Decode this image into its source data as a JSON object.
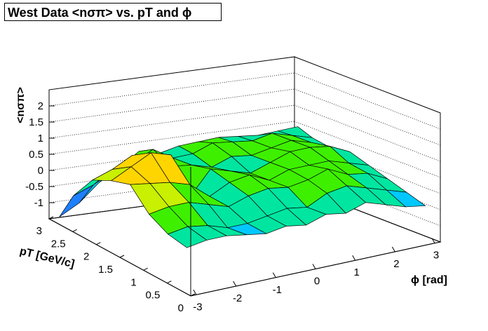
{
  "chart_data": {
    "type": "surface",
    "title": "West Data <nσπ> vs. pT and ϕ",
    "xlabel": "ϕ [rad]",
    "ylabel": "pT [GeV/c]",
    "zlabel": "<nσπ>",
    "xlim": [
      -3.14,
      3.14
    ],
    "ylim": [
      0,
      3
    ],
    "zlim": [
      -1.5,
      2.5
    ],
    "x_ticks": [
      "-3",
      "-2",
      "-1",
      "0",
      "1",
      "2",
      "3"
    ],
    "x_tick_values": [
      -3,
      -2,
      -1,
      0,
      1,
      2,
      3
    ],
    "y_ticks": [
      "0",
      "0.5",
      "1",
      "1.5",
      "2",
      "2.5",
      "3"
    ],
    "y_tick_values": [
      0,
      0.5,
      1,
      1.5,
      2,
      2.5,
      3
    ],
    "z_ticks": [
      "-1",
      "-0.5",
      "0",
      "0.5",
      "1",
      "1.5",
      "2"
    ],
    "z_tick_values": [
      -1,
      -0.5,
      0,
      0.5,
      1,
      1.5,
      2
    ],
    "grid": true,
    "palette": [
      "#6a00ff",
      "#3a2fe0",
      "#1e7fff",
      "#00c8ff",
      "#00e6a0",
      "#3ef000",
      "#c8f000",
      "#ffd500",
      "#ff7a00",
      "#ff2a00"
    ],
    "phi": [
      -3.0,
      -2.5,
      -2.0,
      -1.5,
      -1.0,
      -0.5,
      0.0,
      0.5,
      1.0,
      1.5,
      2.0,
      2.5,
      3.0
    ],
    "pt": [
      0.2,
      0.6,
      1.0,
      1.4,
      1.8,
      2.2,
      2.6,
      2.9
    ],
    "z": [
      [
        -0.2,
        -0.1,
        -0.1,
        -0.2,
        -0.3,
        -0.2,
        -0.3,
        -0.1,
        -0.2,
        0.0,
        -0.2,
        -0.4,
        -0.5
      ],
      [
        -0.1,
        0.0,
        -0.1,
        -0.3,
        -0.3,
        -0.2,
        -0.1,
        -0.2,
        0.1,
        0.2,
        0.0,
        -0.2,
        -0.4
      ],
      [
        0.2,
        0.3,
        0.3,
        0.1,
        -0.1,
        0.1,
        0.2,
        0.1,
        0.2,
        0.4,
        0.1,
        0.0,
        -0.3
      ],
      [
        0.8,
        0.7,
        0.6,
        0.4,
        -0.1,
        0.2,
        0.3,
        0.0,
        0.2,
        0.2,
        0.2,
        0.0,
        -0.2
      ],
      [
        0.6,
        0.9,
        1.2,
        1.0,
        -0.4,
        0.3,
        0.1,
        -0.1,
        0.1,
        0.3,
        0.3,
        0.2,
        -0.1
      ],
      [
        0.3,
        0.5,
        0.8,
        0.6,
        0.2,
        0.1,
        -0.1,
        0.1,
        0.0,
        0.1,
        0.2,
        0.0,
        -0.3
      ],
      [
        -0.5,
        -0.3,
        0.0,
        0.1,
        0.4,
        0.0,
        0.0,
        0.2,
        0.1,
        0.0,
        0.1,
        -0.1,
        -0.3
      ],
      [
        -1.4,
        -1.1,
        -0.6,
        -0.3,
        0.1,
        -0.1,
        0.0,
        0.0,
        0.0,
        -0.1,
        -0.2,
        -0.2,
        -0.2
      ]
    ]
  }
}
